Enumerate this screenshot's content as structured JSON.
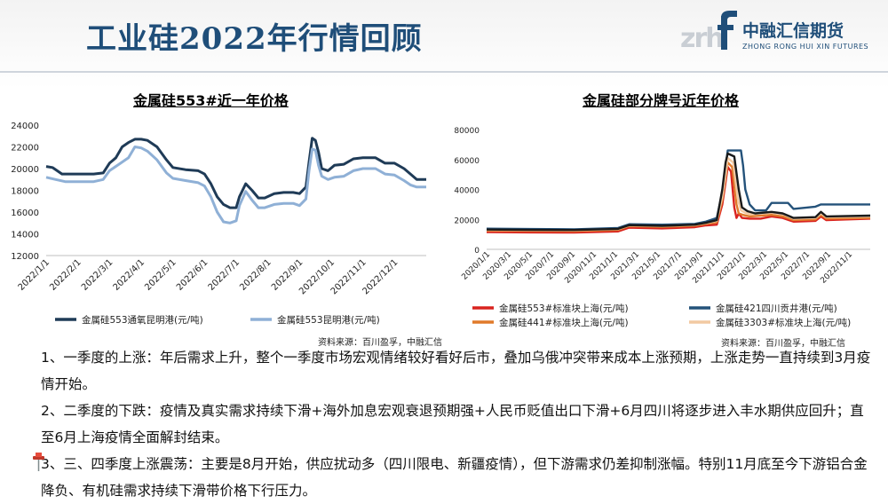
{
  "title": "工业硅2022年行情回顾",
  "logo": {
    "cn": "中融汇信期货",
    "en": "ZHONG RONG HUI XIN FUTURES",
    "mark": "zrh"
  },
  "left_chart_title": "金属硅553#近一年价格",
  "right_chart_title": "金属硅部分牌号近年价格",
  "left_source": "资料来源：百川盈孚，中融汇信",
  "right_source": "资料来源：百川盈孚，中融汇信",
  "paragraphs": [
    "1、一季度的上涨：年后需求上升，整个一季度市场宏观情绪较好看好后市，叠加乌俄冲突带来成本上涨预期，上涨走势一直持续到3月疫情开始。",
    "2、二季度的下跌：疫情及真实需求持续下滑+海外加息宏观衰退预期强+人民币贬值出口下滑+6月四川将逐步进入丰水期供应回升；直至6月上海疫情全面解封结束。",
    "3、三、四季度上涨震荡：主要是8月开始，供应扰动多（四川限电、新疆疫情），但下游需求仍差抑制涨幅。特别11月底至今下游铝合金降负、有机硅需求持续下滑带价格下行压力。"
  ],
  "chart_data": [
    {
      "type": "line",
      "title": "金属硅553#近一年价格",
      "ylim": [
        12000,
        24000
      ],
      "yticks": [
        12000,
        14000,
        16000,
        18000,
        20000,
        22000,
        24000
      ],
      "xrange": [
        0,
        12
      ],
      "xtick_labels": [
        "2022/1/1",
        "2022/2/1",
        "2022/3/1",
        "2022/4/1",
        "2022/5/1",
        "2022/6/1",
        "2022/7/1",
        "2022/8/1",
        "2022/9/1",
        "2022/10/1",
        "2022/11/1",
        "2022/12/1"
      ],
      "legend_position": "bottom",
      "series": [
        {
          "name": "金属硅553通氧昆明港(元/吨)",
          "color": "#1f3b57",
          "points": [
            [
              0,
              20200
            ],
            [
              0.2,
              20100
            ],
            [
              0.5,
              19500
            ],
            [
              1,
              19500
            ],
            [
              1.5,
              19500
            ],
            [
              1.8,
              19600
            ],
            [
              2,
              20500
            ],
            [
              2.2,
              21000
            ],
            [
              2.4,
              22000
            ],
            [
              2.6,
              22400
            ],
            [
              2.8,
              22700
            ],
            [
              3,
              22700
            ],
            [
              3.2,
              22600
            ],
            [
              3.5,
              22000
            ],
            [
              3.8,
              20800
            ],
            [
              4,
              20100
            ],
            [
              4.4,
              19900
            ],
            [
              4.8,
              19800
            ],
            [
              5,
              19500
            ],
            [
              5.2,
              18600
            ],
            [
              5.4,
              17400
            ],
            [
              5.6,
              16700
            ],
            [
              5.8,
              16400
            ],
            [
              6,
              16400
            ],
            [
              6.1,
              17400
            ],
            [
              6.3,
              18600
            ],
            [
              6.5,
              18000
            ],
            [
              6.7,
              17300
            ],
            [
              6.9,
              17300
            ],
            [
              7.2,
              17700
            ],
            [
              7.5,
              17800
            ],
            [
              7.8,
              17800
            ],
            [
              8,
              17700
            ],
            [
              8.2,
              18300
            ],
            [
              8.3,
              20600
            ],
            [
              8.4,
              22800
            ],
            [
              8.5,
              22600
            ],
            [
              8.6,
              21500
            ],
            [
              8.7,
              20000
            ],
            [
              8.9,
              19800
            ],
            [
              9.1,
              20300
            ],
            [
              9.4,
              20400
            ],
            [
              9.7,
              20900
            ],
            [
              10,
              21000
            ],
            [
              10.4,
              21000
            ],
            [
              10.7,
              20500
            ],
            [
              11,
              20500
            ],
            [
              11.3,
              20000
            ],
            [
              11.5,
              19500
            ],
            [
              11.7,
              19000
            ],
            [
              12,
              19000
            ]
          ]
        },
        {
          "name": "金属硅553昆明港(元/吨)",
          "color": "#8fb0d6",
          "points": [
            [
              0,
              19200
            ],
            [
              0.3,
              19000
            ],
            [
              0.6,
              18800
            ],
            [
              1,
              18800
            ],
            [
              1.5,
              18800
            ],
            [
              1.8,
              19000
            ],
            [
              2,
              19800
            ],
            [
              2.3,
              20400
            ],
            [
              2.6,
              21000
            ],
            [
              2.8,
              22000
            ],
            [
              3,
              21900
            ],
            [
              3.2,
              21600
            ],
            [
              3.5,
              20800
            ],
            [
              3.8,
              19600
            ],
            [
              4,
              19100
            ],
            [
              4.4,
              18900
            ],
            [
              4.8,
              18700
            ],
            [
              5,
              18400
            ],
            [
              5.2,
              17400
            ],
            [
              5.4,
              16000
            ],
            [
              5.6,
              15100
            ],
            [
              5.8,
              15000
            ],
            [
              6,
              15200
            ],
            [
              6.1,
              16600
            ],
            [
              6.3,
              17900
            ],
            [
              6.5,
              17100
            ],
            [
              6.7,
              16400
            ],
            [
              6.9,
              16400
            ],
            [
              7.2,
              16700
            ],
            [
              7.5,
              16800
            ],
            [
              7.8,
              16800
            ],
            [
              8,
              16600
            ],
            [
              8.2,
              17200
            ],
            [
              8.3,
              19800
            ],
            [
              8.4,
              21800
            ],
            [
              8.5,
              21700
            ],
            [
              8.6,
              20300
            ],
            [
              8.7,
              19300
            ],
            [
              8.9,
              19000
            ],
            [
              9.1,
              19200
            ],
            [
              9.4,
              19300
            ],
            [
              9.7,
              19800
            ],
            [
              10,
              20000
            ],
            [
              10.4,
              20000
            ],
            [
              10.7,
              19500
            ],
            [
              11,
              19400
            ],
            [
              11.3,
              18900
            ],
            [
              11.5,
              18500
            ],
            [
              11.7,
              18300
            ],
            [
              12,
              18300
            ]
          ]
        }
      ]
    },
    {
      "type": "line",
      "title": "金属硅部分牌号近年价格",
      "ylim": [
        0,
        80000
      ],
      "yticks": [
        0,
        20000,
        40000,
        60000,
        80000
      ],
      "xrange": [
        0,
        35
      ],
      "xtick_labels": [
        "2020/1/1",
        "2020/3/1",
        "2020/5/1",
        "2020/7/1",
        "2020/9/1",
        "2020/11/1",
        "2021/1/1",
        "2021/3/1",
        "2021/5/1",
        "2021/7/1",
        "2021/9/1",
        "2021/11/1",
        "2022/1/1",
        "2022/3/1",
        "2022/5/1",
        "2022/7/1",
        "2022/9/1",
        "2022/11/1"
      ],
      "legend_position": "bottom",
      "series": [
        {
          "name": "金属硅553#标准块上海(元/吨)",
          "color": "#d9231f",
          "points": [
            [
              0,
              11500
            ],
            [
              4,
              11300
            ],
            [
              8,
              11200
            ],
            [
              12,
              12000
            ],
            [
              13,
              14500
            ],
            [
              16,
              14000
            ],
            [
              19,
              14800
            ],
            [
              20,
              16000
            ],
            [
              21,
              16500
            ],
            [
              21.5,
              30000
            ],
            [
              21.8,
              45000
            ],
            [
              22,
              55000
            ],
            [
              22.3,
              52000
            ],
            [
              22.6,
              28000
            ],
            [
              22.8,
              21000
            ],
            [
              23,
              24000
            ],
            [
              23.3,
              21000
            ],
            [
              24,
              20500
            ],
            [
              25,
              20500
            ],
            [
              26,
              22000
            ],
            [
              27,
              21000
            ],
            [
              28,
              18500
            ],
            [
              30,
              19000
            ],
            [
              30.5,
              22000
            ],
            [
              31,
              19500
            ],
            [
              35,
              20500
            ]
          ]
        },
        {
          "name": "金属硅421四川贡井港(元/吨)",
          "color": "#24527a",
          "points": [
            [
              0,
              13800
            ],
            [
              4,
              13600
            ],
            [
              8,
              13400
            ],
            [
              12,
              14300
            ],
            [
              13,
              16800
            ],
            [
              16,
              16500
            ],
            [
              19,
              17000
            ],
            [
              20,
              18500
            ],
            [
              21,
              21000
            ],
            [
              21.5,
              38000
            ],
            [
              21.8,
              55000
            ],
            [
              22,
              66000
            ],
            [
              23.2,
              66000
            ],
            [
              23.4,
              56000
            ],
            [
              23.6,
              40000
            ],
            [
              24,
              30000
            ],
            [
              24.5,
              26000
            ],
            [
              25.5,
              26000
            ],
            [
              26,
              31000
            ],
            [
              27.5,
              31000
            ],
            [
              28,
              27000
            ],
            [
              30,
              28500
            ],
            [
              30.5,
              30000
            ],
            [
              35,
              30000
            ]
          ]
        },
        {
          "name": "金属硅441#标准块上海(元/吨)",
          "color": "#e07a2a",
          "points": [
            [
              0,
              12500
            ],
            [
              4,
              12300
            ],
            [
              8,
              12200
            ],
            [
              12,
              13000
            ],
            [
              13,
              15500
            ],
            [
              16,
              15000
            ],
            [
              19,
              15800
            ],
            [
              20,
              17000
            ],
            [
              21,
              18000
            ],
            [
              21.5,
              33000
            ],
            [
              21.8,
              48000
            ],
            [
              22,
              58000
            ],
            [
              22.4,
              55000
            ],
            [
              22.8,
              30000
            ],
            [
              23,
              24000
            ],
            [
              23.4,
              23000
            ],
            [
              24,
              22000
            ],
            [
              26,
              23000
            ],
            [
              27,
              22000
            ],
            [
              28,
              19500
            ],
            [
              30,
              20000
            ],
            [
              30.5,
              23000
            ],
            [
              31,
              20500
            ],
            [
              35,
              21000
            ]
          ]
        },
        {
          "name": "金属硅3303#标准块上海(元/吨)",
          "color": "#f2c9a2",
          "points": [
            [
              0,
              13000
            ],
            [
              4,
              12800
            ],
            [
              8,
              12700
            ],
            [
              12,
              13500
            ],
            [
              13,
              16000
            ],
            [
              16,
              15500
            ],
            [
              19,
              16300
            ],
            [
              20,
              17500
            ],
            [
              21,
              19000
            ],
            [
              21.5,
              35000
            ],
            [
              21.8,
              50000
            ],
            [
              22,
              61000
            ],
            [
              22.5,
              58000
            ],
            [
              22.9,
              34000
            ],
            [
              23.2,
              26000
            ],
            [
              23.6,
              24500
            ],
            [
              24,
              23500
            ],
            [
              26,
              24500
            ],
            [
              27,
              23500
            ],
            [
              28,
              20500
            ],
            [
              30,
              21000
            ],
            [
              30.5,
              24000
            ],
            [
              31,
              21500
            ],
            [
              35,
              22000
            ]
          ]
        },
        {
          "name": "",
          "color": "#1a1a1a",
          "points": [
            [
              0,
              13200
            ],
            [
              4,
              13000
            ],
            [
              8,
              12900
            ],
            [
              12,
              13700
            ],
            [
              13,
              16200
            ],
            [
              16,
              15700
            ],
            [
              19,
              16500
            ],
            [
              20,
              17700
            ],
            [
              21,
              19500
            ],
            [
              21.5,
              40000
            ],
            [
              21.8,
              58000
            ],
            [
              22,
              64000
            ],
            [
              22.6,
              62000
            ],
            [
              23,
              40000
            ],
            [
              23.3,
              28000
            ],
            [
              23.8,
              25500
            ],
            [
              24.5,
              24000
            ],
            [
              26,
              25000
            ],
            [
              27,
              24000
            ],
            [
              28,
              21000
            ],
            [
              30,
              21500
            ],
            [
              30.5,
              25000
            ],
            [
              31,
              22000
            ],
            [
              35,
              22500
            ]
          ]
        }
      ]
    }
  ]
}
